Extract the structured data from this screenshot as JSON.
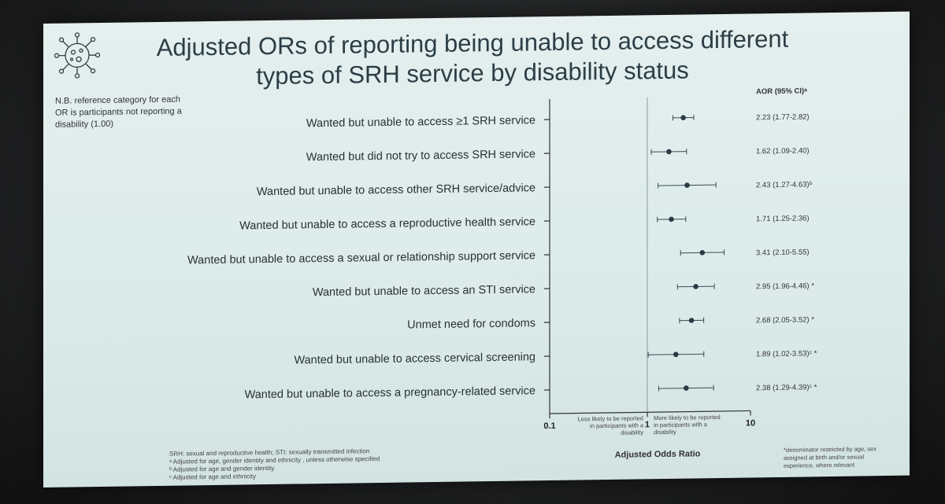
{
  "slide": {
    "title_line1": "Adjusted ORs of reporting being unable to access different",
    "title_line2": "types of SRH service by disability status",
    "reference_note": "N.B. reference category for each OR is participants not reporting a disability (1.00)"
  },
  "chart_data": {
    "type": "forest",
    "title": "Adjusted ORs of reporting being unable to access different types of SRH service by disability status",
    "column_header": "AOR (95% CI)ᵃ",
    "xlabel": "Adjusted Odds Ratio",
    "x_scale": "log",
    "xlim": [
      0.1,
      10
    ],
    "x_ticks": [
      "0.1",
      "1",
      "10"
    ],
    "reference_line": 1,
    "left_annotation": "Less likely to be reported in participants with a disability",
    "right_annotation": "More likely to be reported in participants with a disability",
    "rows": [
      {
        "label": "Wanted but unable to access ≥1 SRH service",
        "aor": 2.23,
        "lo": 1.77,
        "hi": 2.82,
        "text": "2.23 (1.77-2.82)"
      },
      {
        "label": "Wanted but did not try to access SRH service",
        "aor": 1.62,
        "lo": 1.09,
        "hi": 2.4,
        "text": "1.62 (1.09-2.40)"
      },
      {
        "label": "Wanted but unable to access other SRH service/advice",
        "aor": 2.43,
        "lo": 1.27,
        "hi": 4.63,
        "text": "2.43 (1.27-4.63)ᵇ"
      },
      {
        "label": "Wanted but unable to access a reproductive health service",
        "aor": 1.71,
        "lo": 1.25,
        "hi": 2.36,
        "text": "1.71 (1.25-2.36)"
      },
      {
        "label": "Wanted but unable to access a sexual or relationship support service",
        "aor": 3.41,
        "lo": 2.1,
        "hi": 5.55,
        "text": "3.41 (2.10-5.55)"
      },
      {
        "label": "Wanted but unable to access an STI service",
        "aor": 2.95,
        "lo": 1.96,
        "hi": 4.46,
        "text": "2.95 (1.96-4.46) *"
      },
      {
        "label": "Unmet need for condoms",
        "aor": 2.68,
        "lo": 2.05,
        "hi": 3.52,
        "text": "2.68 (2.05-3.52) *"
      },
      {
        "label": "Wanted but unable to access cervical screening",
        "aor": 1.89,
        "lo": 1.02,
        "hi": 3.53,
        "text": "1.89 (1.02-3.53)ᶜ *"
      },
      {
        "label": "Wanted but unable to access a pregnancy-related service",
        "aor": 2.38,
        "lo": 1.29,
        "hi": 4.39,
        "text": "2.38 (1.29-4.39)ᶜ *"
      }
    ]
  },
  "footnotes": {
    "line1": "SRH: sexual and reproductive health; STI: sexually transmitted infection",
    "line2": "ᵃ Adjusted for age, gender identity and ethnicity , unless otherwise specified",
    "line3": "ᵇ Adjusted for age and gender identity",
    "line4": "ᶜ Adjusted for age and ethnicity",
    "side_note": "*denominator restricted by age, sex assigned at birth and/or sexual experience, where relevant"
  },
  "colors": {
    "slide_bg": "#dcebea",
    "title": "#2c3e45",
    "marker": "#2b3b44",
    "ci_line": "#3a4a52"
  }
}
